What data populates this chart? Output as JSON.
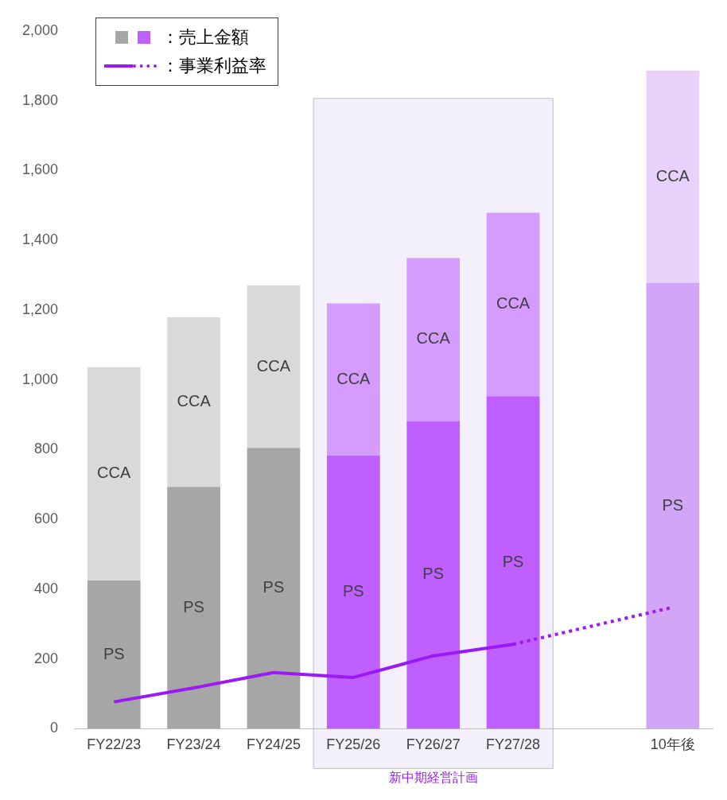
{
  "chart_data": {
    "type": "bar",
    "stacked": true,
    "legend": "top left",
    "legend_title": "：売上金額",
    "grid": false,
    "marker": "none",
    "categories": [
      "FY22/23",
      "FY23/24",
      "FY24/25",
      "FY25/26",
      "FY26/27",
      "FY27/28",
      null,
      "10年後"
    ],
    "ylim": [
      0,
      2000
    ],
    "yticks": [
      0,
      200,
      400,
      600,
      800,
      {
        "value": 1000,
        "label": "1,000"
      },
      {
        "value": 1200,
        "label": "1,200"
      },
      {
        "value": 1400,
        "label": "1,400"
      },
      {
        "value": 1600,
        "label": "1,600"
      },
      {
        "value": 1800,
        "label": "1,800"
      },
      {
        "value": 2000,
        "label": "2,000"
      }
    ],
    "series": [
      {
        "name": "PS",
        "values": [
          425,
          693,
          805,
          783,
          882,
          953,
          null,
          1278
        ],
        "colors": [
          "#a6a6a6",
          "#a6a6a6",
          "#a6a6a6",
          "#bf5fff",
          "#bf5fff",
          "#bf5fff",
          "#bf5fff",
          "#d2a6f7"
        ]
      },
      {
        "name": "CCA",
        "values": [
          611,
          486,
          465,
          436,
          467,
          526,
          null,
          608
        ],
        "colors": [
          "#d9d9d9",
          "#d9d9d9",
          "#d9d9d9",
          "#d69bff",
          "#d69bff",
          "#d69bff",
          "#d69bff",
          "#e8d2fb"
        ]
      },
      {
        "name": "：事業利益率",
        "type": "line",
        "color": "#9b19f5",
        "line_style": "solid",
        "values": [
          77,
          117,
          161,
          147,
          209,
          242,
          null,
          null
        ]
      },
      {
        "type": "line",
        "color": "#9b19f5",
        "line_style": "dotted",
        "values": [
          null,
          null,
          null,
          null,
          null,
          242,
          null,
          348
        ]
      }
    ],
    "bands": [
      {
        "axis": "x",
        "from": "FY25/26",
        "to": "FY27/28",
        "label": "新中期経営計画",
        "color": "#f3effb"
      }
    ]
  }
}
